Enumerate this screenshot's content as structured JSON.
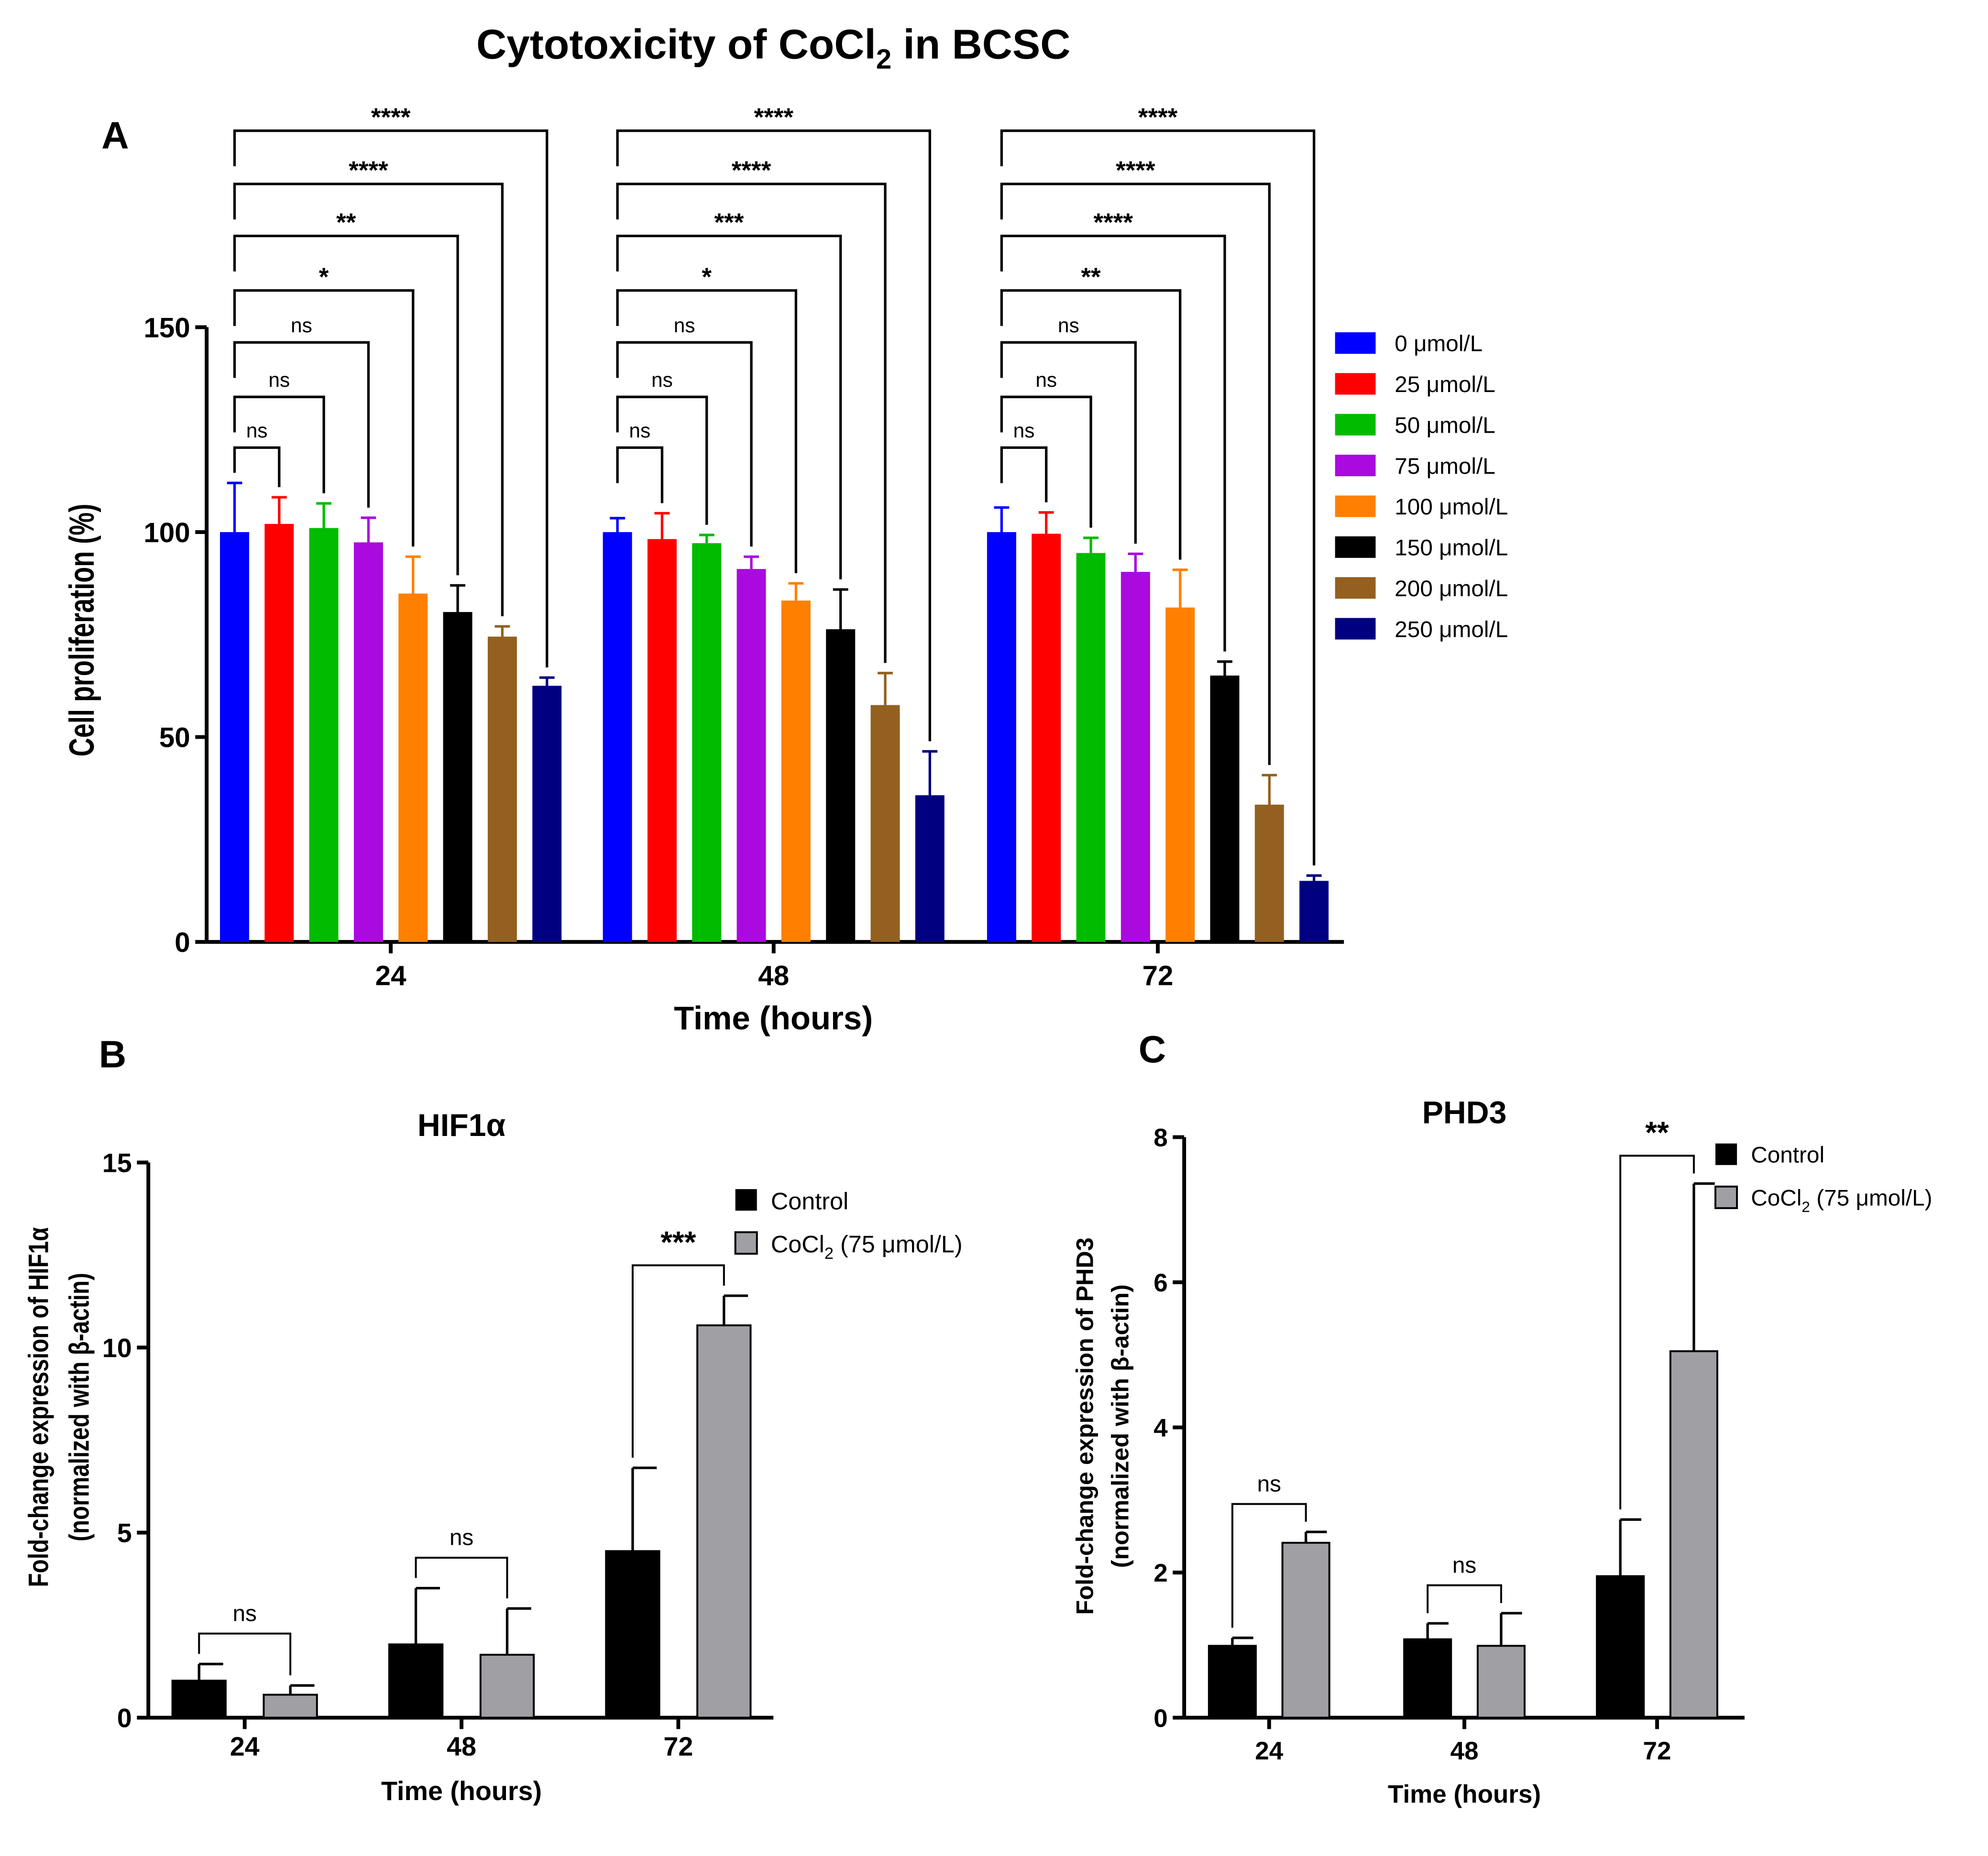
{
  "figure": {
    "title_main": "Cytotoxicity of CoCl",
    "title_sub": "2",
    "title_tail": " in BCSC",
    "panel_labels": [
      "A",
      "B",
      "C"
    ]
  },
  "chart_data": [
    {
      "id": "A",
      "type": "bar",
      "title": "Cytotoxicity of CoCl2 in BCSC",
      "xlabel": "Time (hours)",
      "ylabel": "Cell proliferation (%)",
      "categories": [
        "24",
        "48",
        "72"
      ],
      "ylim": [
        0,
        150
      ],
      "yticks": [
        0,
        50,
        100,
        150
      ],
      "legend_position": "right",
      "series": [
        {
          "name": "0 μmol/L",
          "color": "#0000ff",
          "values": [
            100,
            100,
            100
          ],
          "err_upper": [
            112,
            103.4,
            106
          ]
        },
        {
          "name": "25 μmol/L",
          "color": "#ff0000",
          "values": [
            102,
            98.3,
            99.6
          ],
          "err_upper": [
            108.5,
            104.6,
            104.8
          ]
        },
        {
          "name": "50 μmol/L",
          "color": "#00bb00",
          "values": [
            101,
            97.3,
            94.9
          ],
          "err_upper": [
            107,
            99.3,
            98.6
          ]
        },
        {
          "name": "75 μmol/L",
          "color": "#aa0adf",
          "values": [
            97.5,
            91,
            90.3
          ],
          "err_upper": [
            103.5,
            94,
            94.7
          ]
        },
        {
          "name": "100 μmol/L",
          "color": "#ff8000",
          "values": [
            85,
            83.3,
            81.6
          ],
          "err_upper": [
            94,
            87.5,
            90.8
          ]
        },
        {
          "name": "150 μmol/L",
          "color": "#000000",
          "values": [
            80.5,
            76.3,
            65
          ],
          "err_upper": [
            87,
            86,
            68.4
          ]
        },
        {
          "name": "200 μmol/L",
          "color": "#936020",
          "values": [
            74.5,
            57.8,
            33.5
          ],
          "err_upper": [
            77,
            65.6,
            40.7
          ]
        },
        {
          "name": "250 μmol/L",
          "color": "#000080",
          "values": [
            62.5,
            35.8,
            14.9
          ],
          "err_upper": [
            64.5,
            46.5,
            16.2
          ]
        }
      ],
      "significance": {
        "comparison": "0 μmol/L vs each concentration",
        "24": [
          "ns",
          "ns",
          "ns",
          "*",
          "**",
          "****",
          "****"
        ],
        "48": [
          "ns",
          "ns",
          "ns",
          "*",
          "***",
          "****",
          "****"
        ],
        "72": [
          "ns",
          "ns",
          "ns",
          "**",
          "****",
          "****",
          "****"
        ]
      }
    },
    {
      "id": "B",
      "type": "bar",
      "title": "HIF1α",
      "xlabel": "Time (hours)",
      "ylabel_line1": "Fold-change expression of HIF1α",
      "ylabel_line2": "(normalized with β-actin)",
      "categories": [
        "24",
        "48",
        "72"
      ],
      "ylim": [
        0,
        15
      ],
      "yticks": [
        0,
        5,
        10,
        15
      ],
      "legend_position": "top-right",
      "series": [
        {
          "name": "Control",
          "color": "#000000",
          "values": [
            1.0,
            1.98,
            4.5
          ],
          "err_upper": [
            1.45,
            3.5,
            6.75
          ]
        },
        {
          "name": "CoCl2 (75 μmol/L)",
          "color": "#a0a0a4",
          "values": [
            0.62,
            1.7,
            10.6
          ],
          "err_upper": [
            0.87,
            2.95,
            11.4
          ]
        }
      ],
      "significance": [
        "ns",
        "ns",
        "***"
      ]
    },
    {
      "id": "C",
      "type": "bar",
      "title": "PHD3",
      "xlabel": "Time (hours)",
      "ylabel_line1": "Fold-change expression of PHD3",
      "ylabel_line2": "(normalized with β-actin)",
      "categories": [
        "24",
        "48",
        "72"
      ],
      "ylim": [
        0,
        8
      ],
      "yticks": [
        0,
        2,
        4,
        6,
        8
      ],
      "legend_position": "top-right",
      "series": [
        {
          "name": "Control",
          "color": "#000000",
          "values": [
            0.99,
            1.08,
            1.95
          ],
          "err_upper": [
            1.1,
            1.3,
            2.73
          ]
        },
        {
          "name": "CoCl2 (75 μmol/L)",
          "color": "#a0a0a4",
          "values": [
            2.41,
            0.99,
            5.05
          ],
          "err_upper": [
            2.56,
            1.44,
            7.36
          ]
        }
      ],
      "significance": [
        "ns",
        "ns",
        "**"
      ]
    }
  ],
  "legend_bc": {
    "control": "Control",
    "cocl_main": "CoCl",
    "cocl_sub": "2",
    "cocl_tail": " (75 μmol/L)"
  }
}
